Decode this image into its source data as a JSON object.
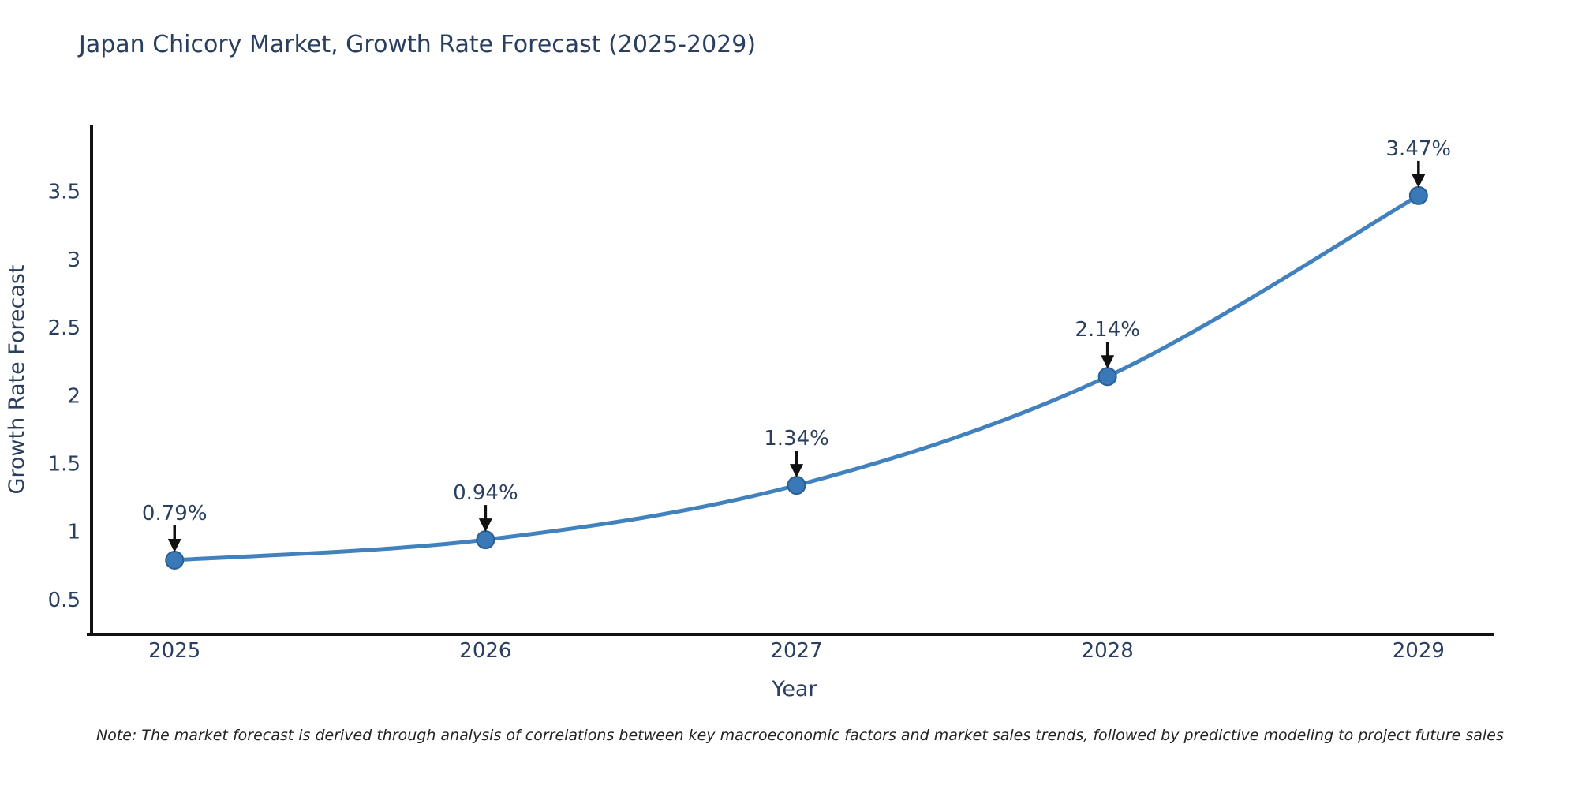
{
  "chart_data": {
    "type": "line",
    "title": "Japan Chicory Market, Growth Rate Forecast (2025-2029)",
    "xlabel": "Year",
    "ylabel": "Growth Rate Forecast",
    "x": [
      2025,
      2026,
      2027,
      2028,
      2029
    ],
    "values": [
      0.79,
      0.94,
      1.34,
      2.14,
      3.47
    ],
    "point_labels": [
      "0.79%",
      "0.94%",
      "1.34%",
      "2.14%",
      "3.47%"
    ],
    "series_name": "Growth Rate Forecast",
    "yticks": [
      0.5,
      1,
      1.5,
      2,
      2.5,
      3,
      3.5
    ],
    "xlim": [
      2024.733,
      2029.244
    ],
    "ylim": [
      0.256,
      3.98
    ],
    "grid": false,
    "legend": false,
    "line_shape": "spline",
    "marker_shape": "circle",
    "note": "Note: The market forecast is derived through analysis of correlations between key macroeconomic factors and market sales trends, followed by predictive modeling to project future sales",
    "colors": {
      "line": "#4181bd",
      "marker_fill": "#3a79b8",
      "marker_edge": "#2b movie"
    }
  }
}
